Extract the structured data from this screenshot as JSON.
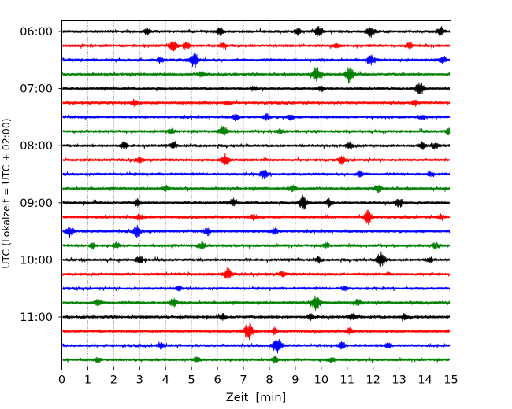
{
  "chart_data": {
    "type": "line",
    "xlabel": "Zeit  [min]",
    "ylabel": "UTC (Lokalzeit = UTC + 02:00)",
    "xlim": [
      0,
      15
    ],
    "x_ticks": [
      "0",
      "1",
      "2",
      "3",
      "4",
      "5",
      "6",
      "7",
      "8",
      "9",
      "10",
      "11",
      "12",
      "13",
      "14",
      "15"
    ],
    "y_tick_labels": [
      "06:00",
      "07:00",
      "08:00",
      "09:00",
      "10:00",
      "11:00"
    ],
    "grid": "vertical dotted at each minute",
    "colors": [
      "#000000",
      "#ff0000",
      "#0000ff",
      "#008000"
    ],
    "trace_interval_minutes": 15,
    "traces": [
      {
        "start": "06:00",
        "color": "#000000",
        "events": [
          [
            3.3,
            0.4
          ],
          [
            6.1,
            0.55
          ],
          [
            9.1,
            0.5
          ],
          [
            9.9,
            0.7
          ],
          [
            11.9,
            0.75
          ],
          [
            14.6,
            0.45
          ]
        ]
      },
      {
        "start": "06:15",
        "color": "#ff0000",
        "events": [
          [
            4.3,
            0.7
          ],
          [
            4.8,
            0.45
          ],
          [
            6.2,
            0.35
          ],
          [
            10.6,
            0.35
          ],
          [
            13.4,
            0.35
          ]
        ]
      },
      {
        "start": "06:30",
        "color": "#0000ff",
        "events": [
          [
            3.8,
            0.4
          ],
          [
            5.1,
            0.9
          ],
          [
            11.9,
            0.7
          ],
          [
            14.7,
            0.45
          ]
        ]
      },
      {
        "start": "06:45",
        "color": "#008000",
        "events": [
          [
            5.4,
            0.4
          ],
          [
            9.8,
            1.0
          ],
          [
            11.1,
            1.0
          ]
        ]
      },
      {
        "start": "07:00",
        "color": "#000000",
        "events": [
          [
            7.4,
            0.35
          ],
          [
            10.0,
            0.35
          ],
          [
            13.8,
            0.85
          ]
        ]
      },
      {
        "start": "07:15",
        "color": "#ff0000",
        "events": [
          [
            2.8,
            0.4
          ],
          [
            6.4,
            0.35
          ],
          [
            13.6,
            0.35
          ]
        ]
      },
      {
        "start": "07:30",
        "color": "#0000ff",
        "events": [
          [
            6.7,
            0.4
          ],
          [
            7.9,
            0.4
          ],
          [
            8.8,
            0.45
          ],
          [
            13.9,
            0.35
          ]
        ]
      },
      {
        "start": "07:45",
        "color": "#008000",
        "events": [
          [
            4.2,
            0.4
          ],
          [
            6.2,
            0.65
          ],
          [
            8.4,
            0.35
          ],
          [
            14.9,
            0.45
          ]
        ]
      },
      {
        "start": "08:00",
        "color": "#000000",
        "events": [
          [
            2.4,
            0.45
          ],
          [
            4.3,
            0.4
          ],
          [
            11.1,
            0.5
          ],
          [
            13.9,
            0.45
          ],
          [
            14.4,
            0.45
          ]
        ]
      },
      {
        "start": "08:15",
        "color": "#ff0000",
        "events": [
          [
            3.0,
            0.35
          ],
          [
            6.3,
            0.8
          ],
          [
            10.8,
            0.45
          ]
        ]
      },
      {
        "start": "08:30",
        "color": "#0000ff",
        "events": [
          [
            7.8,
            0.55
          ],
          [
            11.5,
            0.35
          ],
          [
            14.2,
            0.35
          ]
        ]
      },
      {
        "start": "08:45",
        "color": "#008000",
        "events": [
          [
            4.0,
            0.35
          ],
          [
            8.9,
            0.35
          ],
          [
            12.2,
            0.5
          ]
        ]
      },
      {
        "start": "09:00",
        "color": "#000000",
        "events": [
          [
            2.9,
            0.45
          ],
          [
            6.6,
            0.45
          ],
          [
            9.3,
            0.9
          ],
          [
            10.3,
            0.55
          ],
          [
            13.0,
            0.65
          ]
        ]
      },
      {
        "start": "09:15",
        "color": "#ff0000",
        "events": [
          [
            3.0,
            0.45
          ],
          [
            7.4,
            0.4
          ],
          [
            11.8,
            0.95
          ],
          [
            14.6,
            0.35
          ]
        ]
      },
      {
        "start": "09:30",
        "color": "#0000ff",
        "events": [
          [
            0.3,
            0.7
          ],
          [
            2.9,
            0.75
          ],
          [
            5.6,
            0.45
          ],
          [
            8.2,
            0.45
          ]
        ]
      },
      {
        "start": "09:45",
        "color": "#008000",
        "events": [
          [
            1.2,
            0.4
          ],
          [
            2.1,
            0.4
          ],
          [
            5.4,
            0.45
          ],
          [
            10.2,
            0.35
          ],
          [
            14.4,
            0.35
          ]
        ]
      },
      {
        "start": "10:00",
        "color": "#000000",
        "events": [
          [
            3.0,
            0.5
          ],
          [
            9.9,
            0.35
          ],
          [
            12.3,
            1.0
          ],
          [
            14.2,
            0.35
          ]
        ]
      },
      {
        "start": "10:15",
        "color": "#ff0000",
        "events": [
          [
            6.4,
            0.75
          ],
          [
            8.5,
            0.35
          ]
        ]
      },
      {
        "start": "10:30",
        "color": "#0000ff",
        "events": [
          [
            4.5,
            0.35
          ],
          [
            10.9,
            0.35
          ]
        ]
      },
      {
        "start": "10:45",
        "color": "#008000",
        "events": [
          [
            1.4,
            0.45
          ],
          [
            4.3,
            0.55
          ],
          [
            9.8,
            1.0
          ],
          [
            11.4,
            0.4
          ]
        ]
      },
      {
        "start": "11:00",
        "color": "#000000",
        "events": [
          [
            6.2,
            0.35
          ],
          [
            9.6,
            0.35
          ],
          [
            11.2,
            0.45
          ],
          [
            13.2,
            0.35
          ]
        ]
      },
      {
        "start": "11:15",
        "color": "#ff0000",
        "events": [
          [
            7.2,
            1.05
          ],
          [
            8.2,
            0.4
          ],
          [
            11.1,
            0.4
          ]
        ]
      },
      {
        "start": "11:30",
        "color": "#0000ff",
        "events": [
          [
            3.8,
            0.4
          ],
          [
            8.3,
            1.0
          ],
          [
            10.8,
            0.45
          ],
          [
            12.6,
            0.35
          ]
        ]
      },
      {
        "start": "11:45",
        "color": "#008000",
        "events": [
          [
            1.4,
            0.35
          ],
          [
            5.2,
            0.35
          ],
          [
            8.2,
            0.4
          ],
          [
            10.4,
            0.35
          ]
        ]
      }
    ]
  }
}
